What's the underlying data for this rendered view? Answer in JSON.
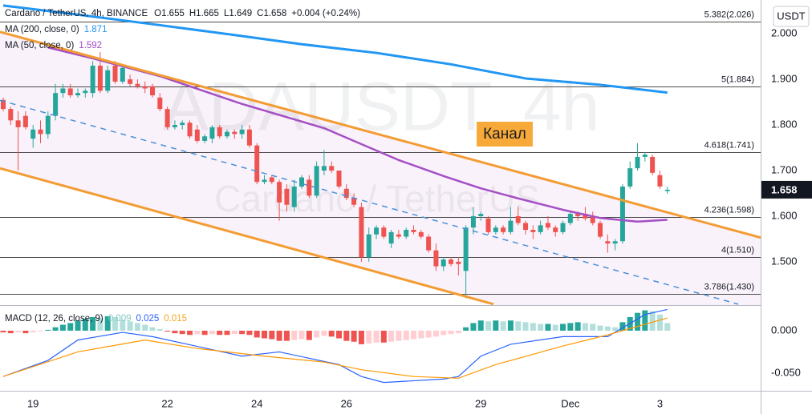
{
  "chart_data": [
    {
      "type": "candlestick",
      "title": "Cardano / TetherUS, 4h, BINANCE",
      "ohlc_labels": [
        "O",
        "H",
        "L",
        "C"
      ],
      "change": "+0.004 (+0.24%)",
      "watermark": "ADAUSDT, 4h",
      "watermark_subtitle": "Cardano / TetherUS",
      "annotation": "Канал",
      "currency": "USDT",
      "up_color": "#26a69a",
      "down_color": "#ef5350",
      "ohlc": [
        [
          1.855,
          1.86,
          1.83,
          1.835
        ],
        [
          1.835,
          1.84,
          1.8,
          1.81
        ],
        [
          1.81,
          1.83,
          1.7,
          1.795
        ],
        [
          1.82,
          1.83,
          1.79,
          1.795
        ],
        [
          1.77,
          1.8,
          1.75,
          1.79
        ],
        [
          1.79,
          1.81,
          1.76,
          1.78
        ],
        [
          1.78,
          1.83,
          1.77,
          1.82
        ],
        [
          1.82,
          1.89,
          1.81,
          1.87
        ],
        [
          1.87,
          1.89,
          1.86,
          1.88
        ],
        [
          1.88,
          1.89,
          1.86,
          1.865
        ],
        [
          1.865,
          1.88,
          1.86,
          1.87
        ],
        [
          1.87,
          1.88,
          1.86,
          1.875
        ],
        [
          1.87,
          1.94,
          1.86,
          1.93
        ],
        [
          1.93,
          1.96,
          1.87,
          1.875
        ],
        [
          1.875,
          1.93,
          1.87,
          1.92
        ],
        [
          1.93,
          1.94,
          1.89,
          1.895
        ],
        [
          1.895,
          1.93,
          1.89,
          1.925
        ],
        [
          1.9,
          1.91,
          1.885,
          1.89
        ],
        [
          1.89,
          1.9,
          1.88,
          1.885
        ],
        [
          1.885,
          1.895,
          1.87,
          1.88
        ],
        [
          1.885,
          1.89,
          1.86,
          1.865
        ],
        [
          1.86,
          1.87,
          1.83,
          1.835
        ],
        [
          1.835,
          1.84,
          1.79,
          1.795
        ],
        [
          1.795,
          1.81,
          1.79,
          1.8
        ],
        [
          1.8,
          1.81,
          1.79,
          1.805
        ],
        [
          1.805,
          1.81,
          1.77,
          1.775
        ],
        [
          1.79,
          1.8,
          1.76,
          1.765
        ],
        [
          1.765,
          1.78,
          1.76,
          1.775
        ],
        [
          1.77,
          1.8,
          1.76,
          1.795
        ],
        [
          1.795,
          1.8,
          1.77,
          1.775
        ],
        [
          1.775,
          1.79,
          1.77,
          1.785
        ],
        [
          1.785,
          1.79,
          1.77,
          1.78
        ],
        [
          1.78,
          1.8,
          1.77,
          1.79
        ],
        [
          1.79,
          1.8,
          1.75,
          1.755
        ],
        [
          1.755,
          1.76,
          1.67,
          1.675
        ],
        [
          1.675,
          1.69,
          1.67,
          1.68
        ],
        [
          1.685,
          1.69,
          1.67,
          1.675
        ],
        [
          1.675,
          1.68,
          1.59,
          1.63
        ],
        [
          1.66,
          1.67,
          1.61,
          1.625
        ],
        [
          1.62,
          1.68,
          1.61,
          1.665
        ],
        [
          1.665,
          1.69,
          1.66,
          1.685
        ],
        [
          1.68,
          1.69,
          1.64,
          1.645
        ],
        [
          1.645,
          1.72,
          1.64,
          1.71
        ],
        [
          1.7,
          1.745,
          1.69,
          1.71
        ],
        [
          1.71,
          1.72,
          1.695,
          1.7
        ],
        [
          1.7,
          1.7,
          1.66,
          1.665
        ],
        [
          1.66,
          1.67,
          1.635,
          1.64
        ],
        [
          1.64,
          1.65,
          1.62,
          1.625
        ],
        [
          1.62,
          1.63,
          1.5,
          1.51
        ],
        [
          1.51,
          1.575,
          1.5,
          1.56
        ],
        [
          1.56,
          1.58,
          1.55,
          1.575
        ],
        [
          1.575,
          1.58,
          1.55,
          1.555
        ],
        [
          1.54,
          1.57,
          1.53,
          1.565
        ],
        [
          1.56,
          1.57,
          1.55,
          1.555
        ],
        [
          1.555,
          1.575,
          1.55,
          1.57
        ],
        [
          1.57,
          1.58,
          1.56,
          1.565
        ],
        [
          1.565,
          1.57,
          1.55,
          1.555
        ],
        [
          1.555,
          1.56,
          1.52,
          1.525
        ],
        [
          1.525,
          1.54,
          1.48,
          1.49
        ],
        [
          1.49,
          1.51,
          1.48,
          1.505
        ],
        [
          1.505,
          1.51,
          1.49,
          1.495
        ],
        [
          1.5,
          1.51,
          1.47,
          1.495
        ],
        [
          1.48,
          1.58,
          1.42,
          1.575
        ],
        [
          1.575,
          1.62,
          1.56,
          1.6
        ],
        [
          1.6,
          1.61,
          1.59,
          1.605
        ],
        [
          1.595,
          1.6,
          1.56,
          1.565
        ],
        [
          1.565,
          1.58,
          1.56,
          1.575
        ],
        [
          1.575,
          1.58,
          1.56,
          1.565
        ],
        [
          1.565,
          1.62,
          1.56,
          1.59
        ],
        [
          1.6,
          1.62,
          1.58,
          1.585
        ],
        [
          1.585,
          1.59,
          1.56,
          1.57
        ],
        [
          1.57,
          1.58,
          1.55,
          1.565
        ],
        [
          1.565,
          1.59,
          1.56,
          1.58
        ],
        [
          1.585,
          1.6,
          1.57,
          1.575
        ],
        [
          1.575,
          1.58,
          1.555,
          1.565
        ],
        [
          1.565,
          1.59,
          1.56,
          1.585
        ],
        [
          1.585,
          1.61,
          1.58,
          1.605
        ],
        [
          1.605,
          1.61,
          1.59,
          1.6
        ],
        [
          1.605,
          1.62,
          1.59,
          1.595
        ],
        [
          1.6,
          1.61,
          1.58,
          1.585
        ],
        [
          1.585,
          1.59,
          1.55,
          1.555
        ],
        [
          1.545,
          1.56,
          1.52,
          1.54
        ],
        [
          1.54,
          1.55,
          1.525,
          1.545
        ],
        [
          1.545,
          1.67,
          1.54,
          1.665
        ],
        [
          1.665,
          1.72,
          1.66,
          1.705
        ],
        [
          1.705,
          1.76,
          1.7,
          1.73
        ],
        [
          1.73,
          1.74,
          1.72,
          1.735
        ],
        [
          1.73,
          1.735,
          1.69,
          1.695
        ],
        [
          1.69,
          1.7,
          1.66,
          1.665
        ],
        [
          1.655,
          1.665,
          1.649,
          1.658
        ]
      ],
      "series": [
        {
          "name": "MA (200, close, 0)",
          "color": "#2196f3",
          "x": [
            0,
            10,
            20,
            32,
            40,
            50,
            60,
            70,
            80,
            89
          ],
          "values": [
            2.062,
            2.042,
            2.021,
            1.995,
            1.977,
            1.958,
            1.933,
            1.902,
            1.888,
            1.871
          ]
        },
        {
          "name": "MA (50, close, 0)",
          "color": "#a44fc4",
          "x": [
            6,
            12,
            21,
            32,
            43,
            48,
            53,
            59,
            64,
            69,
            75,
            80,
            85,
            89
          ],
          "values": [
            1.97,
            1.946,
            1.907,
            1.846,
            1.793,
            1.758,
            1.723,
            1.688,
            1.661,
            1.639,
            1.614,
            1.596,
            1.588,
            1.592
          ]
        }
      ],
      "trendlines": [
        {
          "color": "#f39c33",
          "dashed": false,
          "x": [
            -0.43,
            101.5
          ],
          "values": [
            2.004,
            1.553
          ]
        },
        {
          "color": "#f39c33",
          "dashed": false,
          "x": [
            -0.43,
            65.7
          ],
          "values": [
            1.705,
            1.407
          ]
        },
        {
          "color": "#4a90d9",
          "dashed": true,
          "x": [
            -0.43,
            98.5
          ],
          "values": [
            1.854,
            1.407
          ]
        }
      ],
      "levels": [
        {
          "value": 2.026,
          "label": "5.382(2.026)"
        },
        {
          "value": 1.884,
          "label": "5(1.884)"
        },
        {
          "value": 1.741,
          "label": "4.618(1.741)"
        },
        {
          "value": 1.598,
          "label": "4.236(1.598)"
        },
        {
          "value": 1.51,
          "label": "4(1.510)"
        },
        {
          "value": 1.43,
          "label": "3.786(1.430)"
        }
      ],
      "xlim": [
        -0.43,
        101.5
      ],
      "xticks": [
        {
          "value": 4,
          "label": "19"
        },
        {
          "value": 22,
          "label": "22"
        },
        {
          "value": 34,
          "label": "24"
        },
        {
          "value": 46,
          "label": "26"
        },
        {
          "value": 64,
          "label": "29"
        },
        {
          "value": 76,
          "label": "Dec"
        },
        {
          "value": 88,
          "label": "3"
        }
      ],
      "ylim": [
        1.405,
        2.074
      ],
      "yticks": [
        {
          "value": 2,
          "label": "2.000"
        },
        {
          "value": 1.9,
          "label": "1.900"
        },
        {
          "value": 1.8,
          "label": "1.800"
        },
        {
          "value": 1.7,
          "label": "1.700"
        },
        {
          "value": 1.6,
          "label": "1.600"
        },
        {
          "value": 1.5,
          "label": "1.500"
        }
      ]
    },
    {
      "type": "macd",
      "title": "MACD (12, 26, close, 9)",
      "histogram": {
        "colors": [
          "#26a69a",
          "#b2dfdb",
          "#ffcdd2",
          "#ef5350"
        ],
        "values": [
          -0.002,
          -0.003,
          -0.002,
          -0.003,
          -0.002,
          -0.001,
          0.001,
          0.004,
          0.007,
          0.009,
          0.012,
          0.014,
          0.016,
          0.015,
          0.017,
          0.016,
          0.013,
          0.011,
          0.009,
          0.007,
          0.004,
          0.002,
          -0.001,
          -0.003,
          -0.004,
          -0.005,
          -0.004,
          -0.005,
          -0.004,
          -0.005,
          -0.005,
          -0.004,
          -0.004,
          -0.005,
          -0.008,
          -0.009,
          -0.01,
          -0.012,
          -0.012,
          -0.011,
          -0.01,
          -0.011,
          -0.008,
          -0.006,
          -0.007,
          -0.009,
          -0.012,
          -0.013,
          -0.016,
          -0.015,
          -0.014,
          -0.014,
          -0.013,
          -0.012,
          -0.011,
          -0.01,
          -0.009,
          -0.008,
          -0.007,
          -0.005,
          -0.004,
          -0.003,
          0.004,
          0.009,
          0.012,
          0.011,
          0.012,
          0.011,
          0.012,
          0.011,
          0.01,
          0.009,
          0.008,
          0.008,
          0.007,
          0.008,
          0.009,
          0.01,
          0.009,
          0.008,
          0.006,
          0.005,
          0.004,
          0.01,
          0.016,
          0.021,
          0.024,
          0.023,
          0.019,
          0.009
        ]
      },
      "series": [
        {
          "color": "#2962ff",
          "x": [
            0,
            6,
            10,
            16,
            20,
            32,
            37,
            45,
            48,
            51,
            59,
            61,
            64,
            68,
            75,
            81,
            86,
            89
          ],
          "values": [
            -0.054,
            -0.035,
            -0.011,
            -0.002,
            -0.007,
            -0.03,
            -0.025,
            -0.04,
            -0.054,
            -0.061,
            -0.057,
            -0.054,
            -0.03,
            -0.016,
            -0.007,
            -0.007,
            0.019,
            0.025
          ]
        },
        {
          "color": "#ff9800",
          "x": [
            0,
            10,
            19,
            26,
            35,
            43,
            48,
            55,
            61,
            66,
            75,
            81,
            89
          ],
          "values": [
            -0.054,
            -0.025,
            -0.011,
            -0.021,
            -0.03,
            -0.037,
            -0.046,
            -0.054,
            -0.056,
            -0.04,
            -0.018,
            -0.005,
            0.015
          ]
        }
      ],
      "ylim": [
        -0.0708,
        0.0292
      ],
      "yticks": [
        {
          "value": 0,
          "label": "0.000"
        },
        {
          "value": -0.05,
          "label": "-0.050"
        }
      ]
    }
  ]
}
